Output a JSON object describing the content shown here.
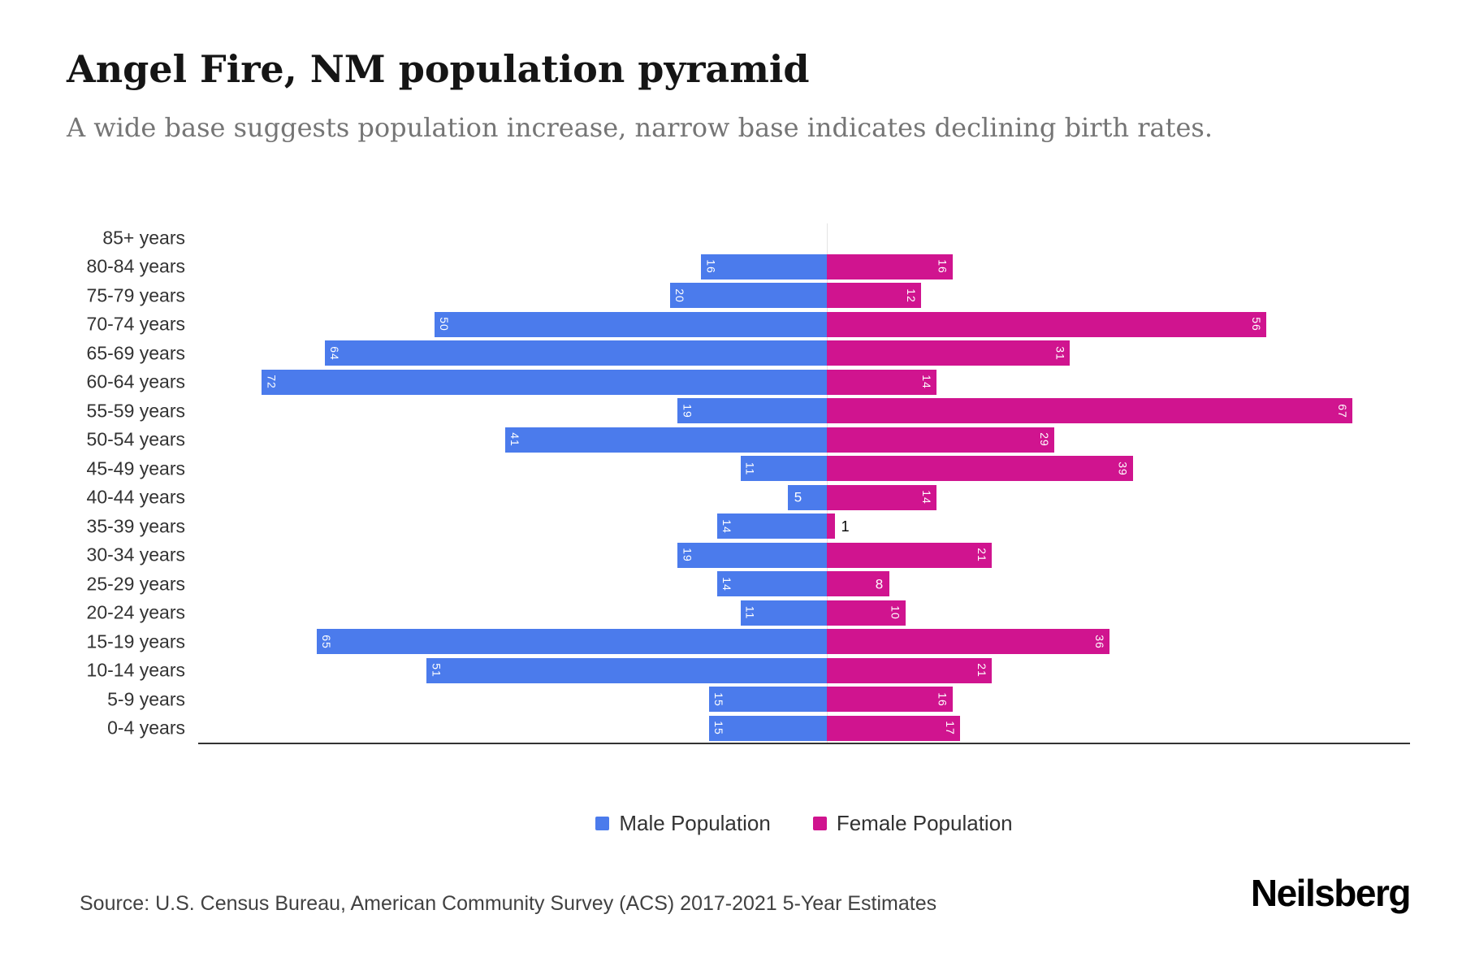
{
  "header": {
    "title": "Angel Fire, NM population pyramid",
    "subtitle": "A wide base suggests population increase, narrow base indicates declining birth rates."
  },
  "chart_data": {
    "type": "bar",
    "variant": "population-pyramid",
    "title": "Angel Fire, NM population pyramid",
    "subtitle": "A wide base suggests population increase, narrow base indicates declining birth rates.",
    "categories": [
      "85+ years",
      "80-84 years",
      "75-79 years",
      "70-74 years",
      "65-69 years",
      "60-64 years",
      "55-59 years",
      "50-54 years",
      "45-49 years",
      "40-44 years",
      "35-39 years",
      "30-34 years",
      "25-29 years",
      "20-24 years",
      "15-19 years",
      "10-14 years",
      "5-9 years",
      "0-4 years"
    ],
    "series": [
      {
        "name": "Male Population",
        "color": "#4b7bec",
        "direction": "left",
        "values": [
          0,
          16,
          20,
          50,
          64,
          72,
          19,
          41,
          11,
          5,
          14,
          19,
          14,
          11,
          65,
          51,
          15,
          15
        ]
      },
      {
        "name": "Female Population",
        "color": "#d0148f",
        "direction": "right",
        "values": [
          0,
          16,
          12,
          56,
          31,
          14,
          67,
          29,
          39,
          14,
          1,
          21,
          8,
          10,
          36,
          21,
          16,
          17
        ]
      }
    ],
    "value_axis_max_each_side": 72,
    "grid": "center-line-only",
    "legend_position": "bottom"
  },
  "footer": {
    "source": "Source: U.S. Census Bureau, American Community Survey (ACS) 2017-2021 5-Year Estimates",
    "logo": "Neilsberg"
  }
}
